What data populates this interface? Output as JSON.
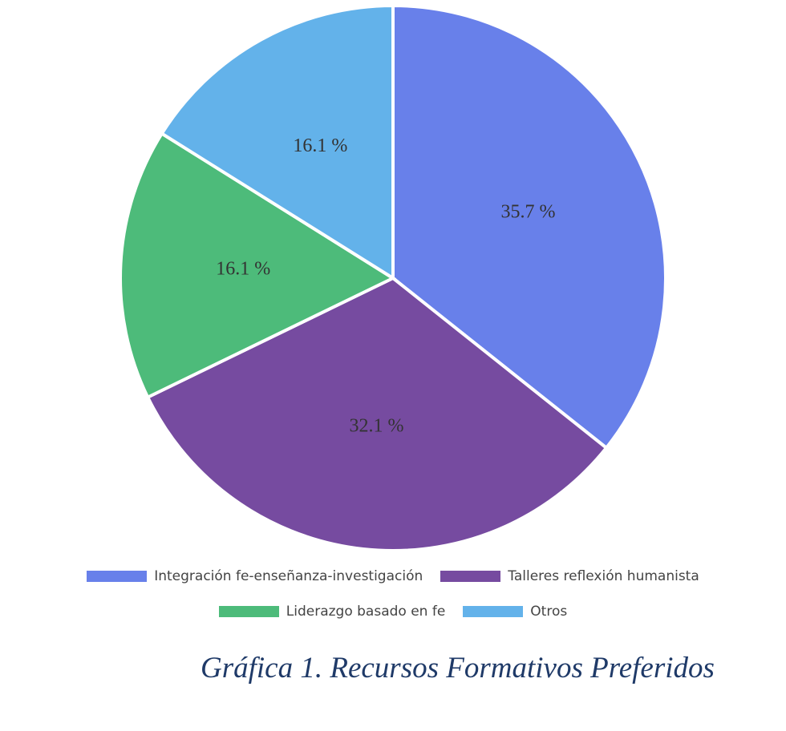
{
  "chart_data": {
    "type": "pie",
    "title": "Gráfica 1. Recursos Formativos Preferidos",
    "categories": [
      "Integración fe-enseñanza-investigación",
      "Talleres reflexión humanista",
      "Liderazgo basado en fe",
      "Otros"
    ],
    "values": [
      35.7,
      32.1,
      16.1,
      16.1
    ],
    "value_labels": [
      "35.7 %",
      "32.1 %",
      "16.1 %",
      "16.1 %"
    ],
    "colors": [
      "#6880ea",
      "#764ba0",
      "#4dbb7a",
      "#63b2ea"
    ]
  }
}
